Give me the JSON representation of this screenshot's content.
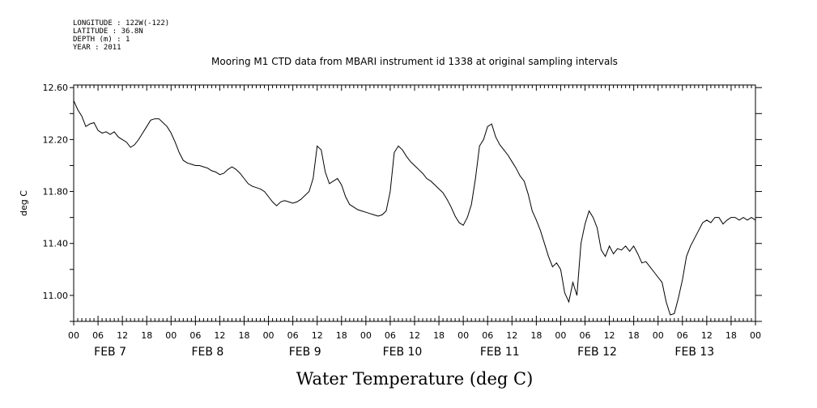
{
  "header": {
    "longitude": "LONGITUDE : 122W(-122)",
    "latitude": "LATITUDE : 36.8N",
    "depth": "DEPTH (m) : 1",
    "year": "YEAR : 2011"
  },
  "chart_data": {
    "type": "line",
    "title": "Mooring M1 CTD data from MBARI instrument id 1338 at original sampling intervals",
    "xlabel": "Water Temperature (deg C)",
    "ylabel": "deg C",
    "ylim": [
      10.8,
      12.62
    ],
    "xlim_hours": [
      0,
      168
    ],
    "yticks": [
      "12.60",
      "12.20",
      "11.80",
      "11.40",
      "11.00"
    ],
    "ytick_values": [
      12.6,
      12.2,
      11.8,
      11.4,
      11.0
    ],
    "xtick_labels": [
      "00",
      "06",
      "12",
      "18",
      "00",
      "06",
      "12",
      "18",
      "00",
      "06",
      "12",
      "18",
      "00",
      "06",
      "12",
      "18",
      "00",
      "06",
      "12",
      "18",
      "00",
      "06",
      "12",
      "18",
      "00",
      "06",
      "12",
      "18",
      "00"
    ],
    "day_labels": [
      "FEB  7",
      "FEB  8",
      "FEB  9",
      "FEB 10",
      "FEB 11",
      "FEB 12",
      "FEB 13"
    ],
    "grid": false,
    "series": [
      {
        "x": [
          0,
          1,
          2,
          3,
          4,
          5,
          6,
          7,
          8,
          9,
          10,
          11,
          12,
          13,
          14,
          15,
          16,
          17,
          18,
          19,
          20,
          21,
          22,
          23,
          24,
          25,
          26,
          27,
          28,
          29,
          30,
          31,
          32,
          33,
          34,
          35,
          36,
          37,
          38,
          39,
          40,
          41,
          42,
          43,
          44,
          45,
          46,
          47,
          48,
          49,
          50,
          51,
          52,
          53,
          54,
          55,
          56,
          57,
          58,
          59,
          60,
          61,
          62,
          63,
          64,
          65,
          66,
          67,
          68,
          69,
          70,
          71,
          72,
          73,
          74,
          75,
          76,
          77,
          78,
          79,
          80,
          81,
          82,
          83,
          84,
          85,
          86,
          87,
          88,
          89,
          90,
          91,
          92,
          93,
          94,
          95,
          96,
          97,
          98,
          99,
          100,
          101,
          102,
          103,
          104,
          105,
          106,
          107,
          108,
          109,
          110,
          111,
          112,
          113,
          114,
          115,
          116,
          117,
          118,
          119,
          120,
          121,
          122,
          123,
          124,
          125,
          126,
          127,
          128,
          129,
          130,
          131,
          132,
          133,
          134,
          135,
          136,
          137,
          138,
          139,
          140,
          141,
          142,
          143,
          144,
          145,
          146,
          147,
          148,
          149,
          150,
          151,
          152,
          153,
          154,
          155,
          156,
          157,
          158,
          159,
          160,
          161,
          162,
          163,
          164,
          165,
          166,
          167,
          168
        ],
        "y": [
          12.5,
          12.43,
          12.38,
          12.3,
          12.32,
          12.33,
          12.27,
          12.25,
          12.26,
          12.24,
          12.26,
          12.22,
          12.2,
          12.18,
          12.14,
          12.16,
          12.2,
          12.25,
          12.3,
          12.35,
          12.36,
          12.36,
          12.33,
          12.3,
          12.25,
          12.18,
          12.1,
          12.04,
          12.02,
          12.01,
          12.0,
          12.0,
          11.99,
          11.98,
          11.96,
          11.95,
          11.93,
          11.94,
          11.97,
          11.99,
          11.97,
          11.94,
          11.9,
          11.86,
          11.84,
          11.83,
          11.82,
          11.8,
          11.76,
          11.72,
          11.69,
          11.72,
          11.73,
          11.72,
          11.71,
          11.72,
          11.74,
          11.77,
          11.8,
          11.9,
          12.15,
          12.12,
          11.95,
          11.86,
          11.88,
          11.9,
          11.85,
          11.76,
          11.7,
          11.68,
          11.66,
          11.65,
          11.64,
          11.63,
          11.62,
          11.61,
          11.62,
          11.65,
          11.8,
          12.1,
          12.15,
          12.12,
          12.07,
          12.03,
          12.0,
          11.97,
          11.94,
          11.9,
          11.88,
          11.85,
          11.82,
          11.79,
          11.74,
          11.68,
          11.61,
          11.56,
          11.54,
          11.6,
          11.7,
          11.9,
          12.15,
          12.2,
          12.3,
          12.32,
          12.22,
          12.16,
          12.12,
          12.08,
          12.03,
          11.98,
          11.92,
          11.88,
          11.78,
          11.65,
          11.58,
          11.5,
          11.4,
          11.3,
          11.22,
          11.25,
          11.2,
          11.02,
          10.95,
          11.1,
          11.0,
          11.4,
          11.55,
          11.65,
          11.6,
          11.52,
          11.35,
          11.3,
          11.38,
          11.32,
          11.36,
          11.35,
          11.38,
          11.34,
          11.38,
          11.32,
          11.25,
          11.26,
          11.22,
          11.18,
          11.14,
          11.1,
          10.95,
          10.85,
          10.86,
          10.98,
          11.12,
          11.3,
          11.38,
          11.44,
          11.5,
          11.56,
          11.58,
          11.56,
          11.6,
          11.6,
          11.55,
          11.58,
          11.6,
          11.6,
          11.58,
          11.6,
          11.58,
          11.6,
          11.58
        ]
      }
    ]
  }
}
